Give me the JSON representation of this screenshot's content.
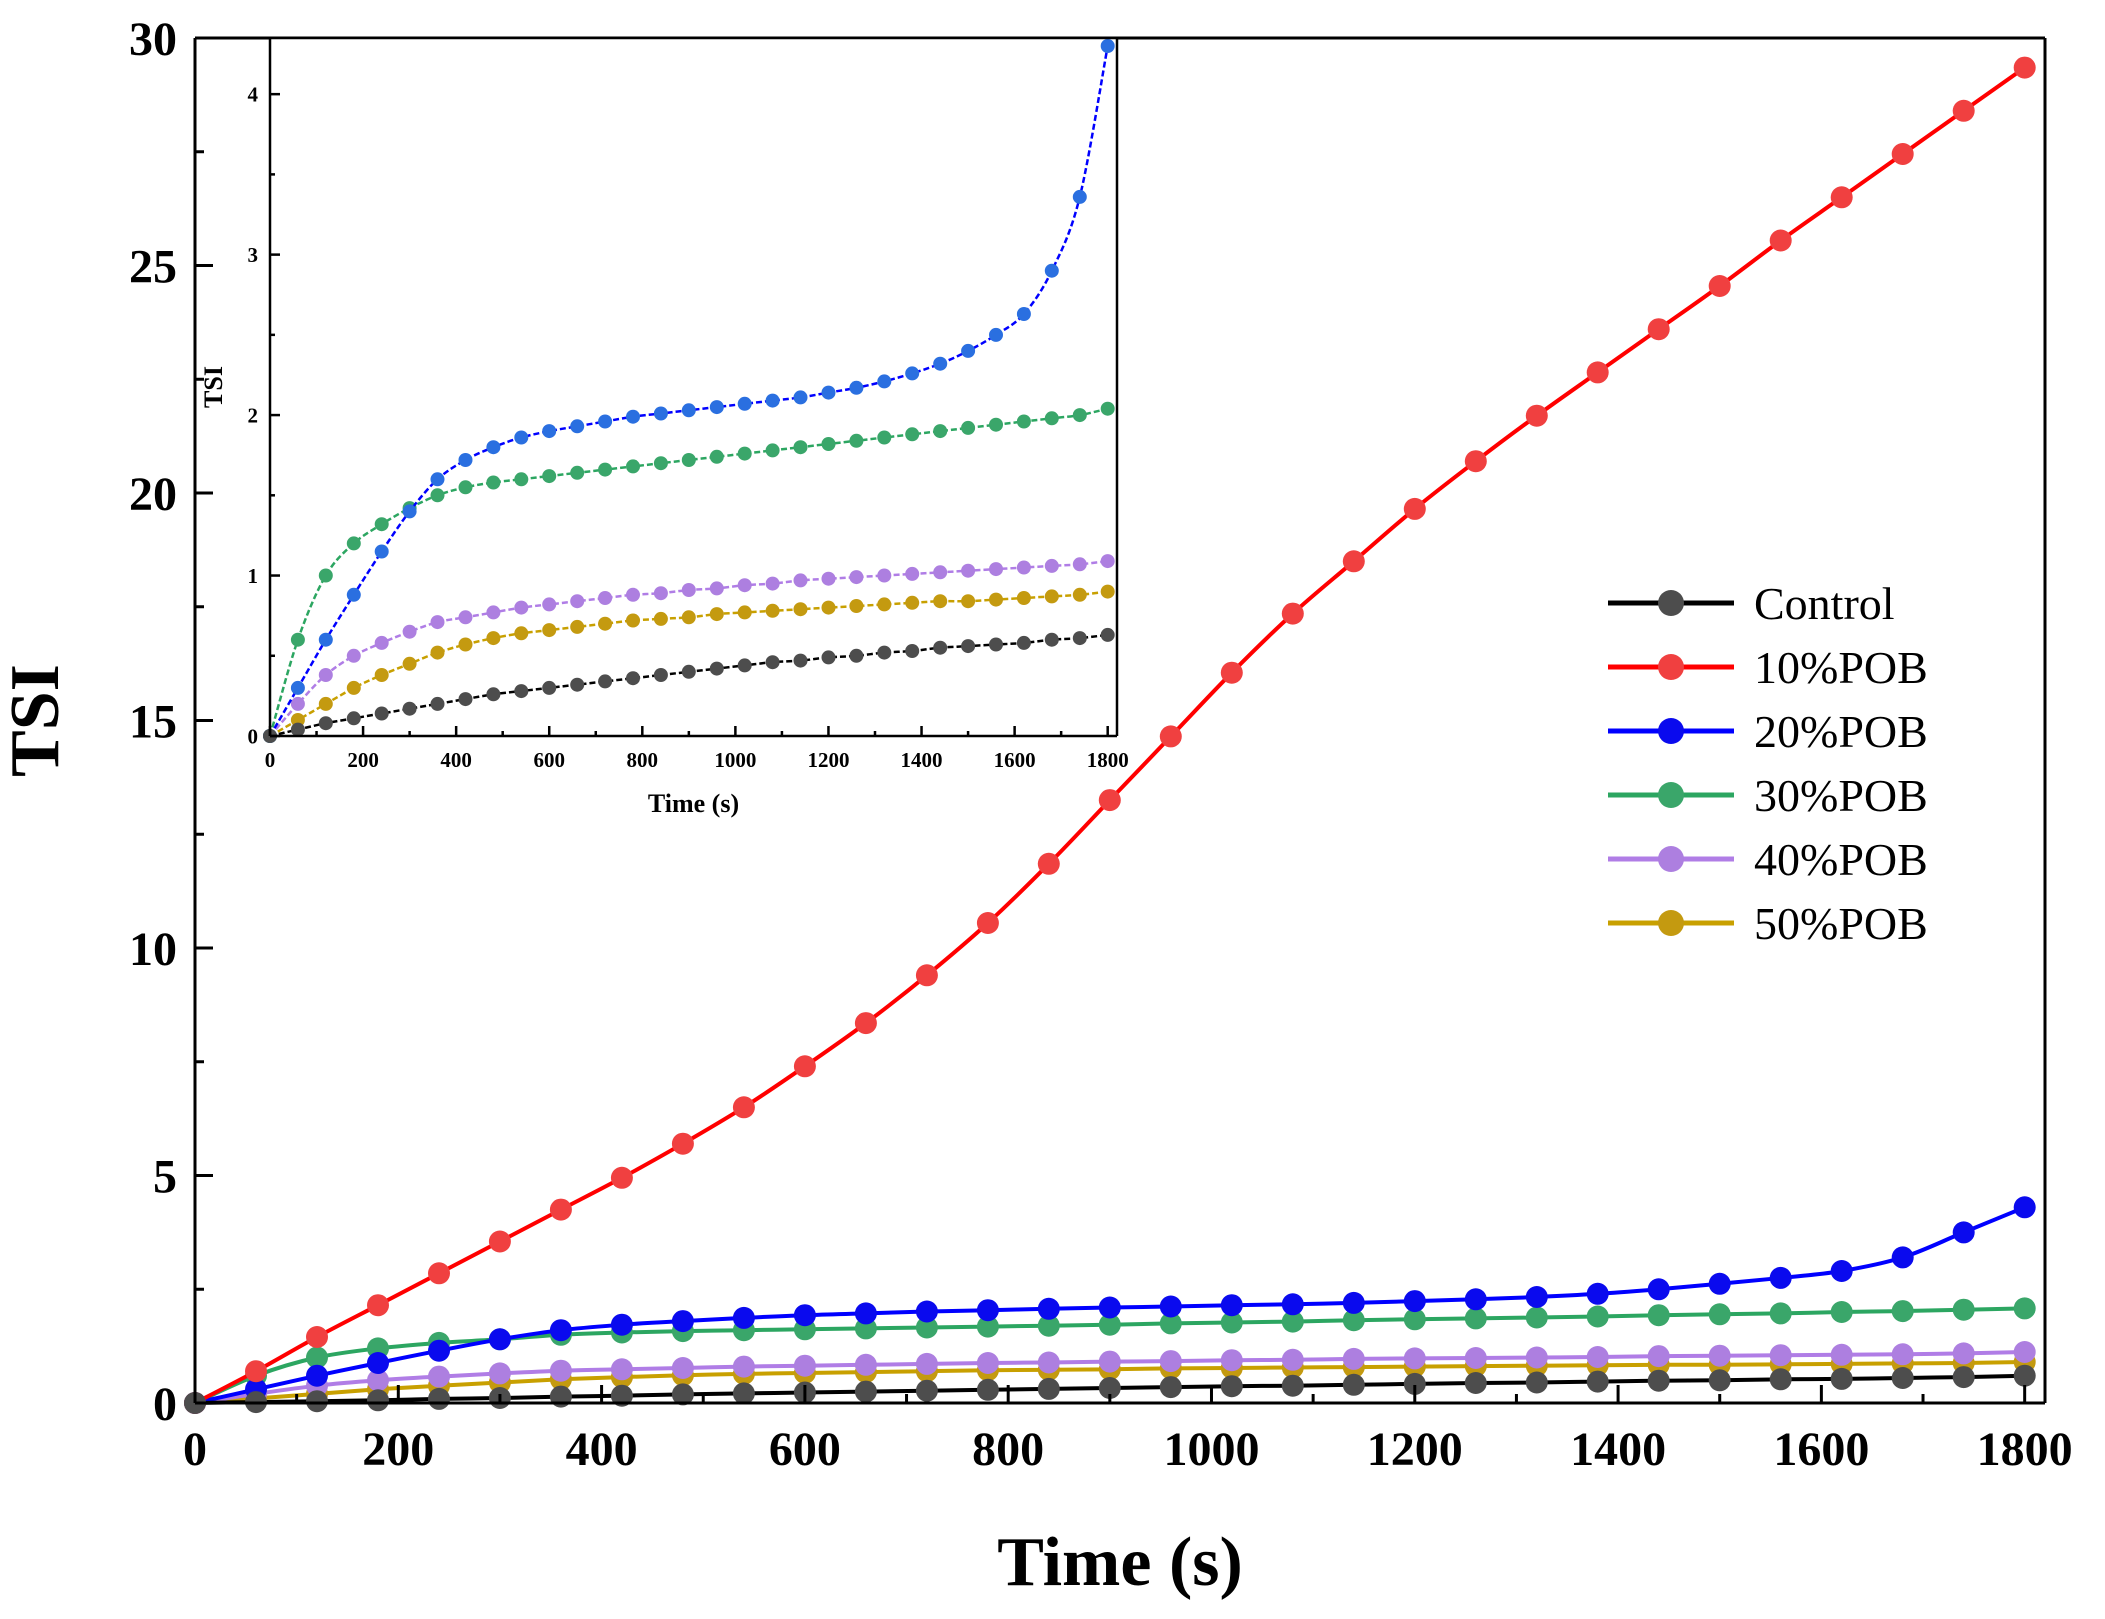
{
  "chart_data": [
    {
      "name": "main",
      "type": "line",
      "xlabel": "Time (s)",
      "ylabel": "TSI",
      "xlim": [
        0,
        1820
      ],
      "ylim": [
        0,
        30
      ],
      "xticks": [
        0,
        200,
        400,
        600,
        800,
        1000,
        1200,
        1400,
        1600,
        1800
      ],
      "yticks": [
        0,
        5,
        10,
        15,
        20,
        25,
        30
      ],
      "x": [
        0,
        60,
        120,
        180,
        240,
        300,
        360,
        420,
        480,
        540,
        600,
        660,
        720,
        780,
        840,
        900,
        960,
        1020,
        1080,
        1140,
        1200,
        1260,
        1320,
        1380,
        1440,
        1500,
        1560,
        1620,
        1680,
        1740,
        1800
      ],
      "legend": {
        "position": "right"
      },
      "series": [
        {
          "name": "Control",
          "color": "#000000",
          "marker_color": "#4d4d4d",
          "values": [
            0,
            0.02,
            0.04,
            0.06,
            0.09,
            0.11,
            0.14,
            0.16,
            0.19,
            0.21,
            0.23,
            0.25,
            0.27,
            0.29,
            0.31,
            0.33,
            0.35,
            0.37,
            0.38,
            0.4,
            0.42,
            0.44,
            0.45,
            0.47,
            0.49,
            0.5,
            0.52,
            0.53,
            0.55,
            0.57,
            0.6
          ]
        },
        {
          "name": "10%POB",
          "color": "#ff0000",
          "marker_color": "#f04040",
          "values": [
            0,
            0.7,
            1.45,
            2.15,
            2.85,
            3.55,
            4.25,
            4.95,
            5.7,
            6.5,
            7.4,
            8.35,
            9.4,
            10.55,
            11.85,
            13.25,
            14.65,
            16.05,
            17.35,
            18.5,
            19.65,
            20.7,
            21.7,
            22.65,
            23.6,
            24.55,
            25.55,
            26.5,
            27.45,
            28.4,
            29.35
          ]
        },
        {
          "name": "20%POB",
          "color": "#0000ff",
          "marker_color": "#0a0aee",
          "values": [
            0,
            0.3,
            0.6,
            0.88,
            1.15,
            1.4,
            1.6,
            1.72,
            1.8,
            1.87,
            1.93,
            1.97,
            2.01,
            2.04,
            2.07,
            2.1,
            2.12,
            2.15,
            2.17,
            2.2,
            2.24,
            2.28,
            2.33,
            2.4,
            2.5,
            2.62,
            2.75,
            2.9,
            3.2,
            3.75,
            4.3
          ]
        },
        {
          "name": "30%POB",
          "color": "#2ca661",
          "marker_color": "#3aa66a",
          "values": [
            0,
            0.6,
            1.0,
            1.2,
            1.32,
            1.4,
            1.5,
            1.55,
            1.58,
            1.6,
            1.62,
            1.64,
            1.66,
            1.68,
            1.7,
            1.72,
            1.75,
            1.77,
            1.79,
            1.82,
            1.84,
            1.86,
            1.88,
            1.9,
            1.93,
            1.95,
            1.97,
            2.0,
            2.02,
            2.05,
            2.08
          ]
        },
        {
          "name": "40%POB",
          "color": "#b07de6",
          "marker_color": "#ad7fe0",
          "values": [
            0,
            0.2,
            0.38,
            0.5,
            0.58,
            0.65,
            0.71,
            0.74,
            0.77,
            0.8,
            0.82,
            0.84,
            0.86,
            0.88,
            0.89,
            0.91,
            0.92,
            0.94,
            0.95,
            0.97,
            0.98,
            0.99,
            1.0,
            1.01,
            1.03,
            1.04,
            1.05,
            1.06,
            1.07,
            1.09,
            1.12
          ]
        },
        {
          "name": "50%POB",
          "color": "#c8a000",
          "marker_color": "#c49a10",
          "values": [
            0,
            0.1,
            0.2,
            0.3,
            0.38,
            0.45,
            0.52,
            0.57,
            0.61,
            0.64,
            0.66,
            0.68,
            0.7,
            0.72,
            0.73,
            0.74,
            0.76,
            0.77,
            0.78,
            0.79,
            0.8,
            0.81,
            0.82,
            0.83,
            0.84,
            0.84,
            0.85,
            0.86,
            0.87,
            0.88,
            0.9
          ]
        }
      ]
    },
    {
      "name": "inset",
      "type": "line",
      "xlabel": "Time (s)",
      "ylabel": "TSI",
      "xlim": [
        0,
        1820
      ],
      "ylim": [
        0,
        4.35
      ],
      "xticks": [
        0,
        200,
        400,
        600,
        800,
        1000,
        1200,
        1400,
        1600,
        1800
      ],
      "yticks": [
        0,
        1,
        2,
        3,
        4
      ],
      "x": [
        0,
        60,
        120,
        180,
        240,
        300,
        360,
        420,
        480,
        540,
        600,
        660,
        720,
        780,
        840,
        900,
        960,
        1020,
        1080,
        1140,
        1200,
        1260,
        1320,
        1380,
        1440,
        1500,
        1560,
        1620,
        1680,
        1740,
        1800
      ],
      "series": [
        {
          "name": "Control",
          "color": "#000000",
          "marker_color": "#4d4d4d",
          "values": [
            0,
            0.04,
            0.08,
            0.11,
            0.14,
            0.17,
            0.2,
            0.23,
            0.26,
            0.28,
            0.3,
            0.32,
            0.34,
            0.36,
            0.38,
            0.4,
            0.42,
            0.44,
            0.46,
            0.47,
            0.49,
            0.5,
            0.52,
            0.53,
            0.55,
            0.56,
            0.57,
            0.58,
            0.6,
            0.61,
            0.63
          ]
        },
        {
          "name": "20%POB",
          "color": "#0000ff",
          "marker_color": "#2a6fe0",
          "values": [
            0,
            0.3,
            0.6,
            0.88,
            1.15,
            1.4,
            1.6,
            1.72,
            1.8,
            1.86,
            1.9,
            1.93,
            1.96,
            1.99,
            2.01,
            2.03,
            2.05,
            2.07,
            2.09,
            2.11,
            2.14,
            2.17,
            2.21,
            2.26,
            2.32,
            2.4,
            2.5,
            2.63,
            2.9,
            3.36,
            4.3
          ]
        },
        {
          "name": "30%POB",
          "color": "#2ca661",
          "marker_color": "#3aa66a",
          "values": [
            0,
            0.6,
            1.0,
            1.2,
            1.32,
            1.42,
            1.5,
            1.55,
            1.58,
            1.6,
            1.62,
            1.64,
            1.66,
            1.68,
            1.7,
            1.72,
            1.74,
            1.76,
            1.78,
            1.8,
            1.82,
            1.84,
            1.86,
            1.88,
            1.9,
            1.92,
            1.94,
            1.96,
            1.98,
            2.0,
            2.04
          ]
        },
        {
          "name": "40%POB",
          "color": "#b07de6",
          "marker_color": "#ad7fe0",
          "values": [
            0,
            0.2,
            0.38,
            0.5,
            0.58,
            0.65,
            0.71,
            0.74,
            0.77,
            0.8,
            0.82,
            0.84,
            0.86,
            0.88,
            0.89,
            0.91,
            0.92,
            0.94,
            0.95,
            0.97,
            0.98,
            0.99,
            1.0,
            1.01,
            1.02,
            1.03,
            1.04,
            1.05,
            1.06,
            1.07,
            1.09
          ]
        },
        {
          "name": "50%POB",
          "color": "#c8a000",
          "marker_color": "#c49a10",
          "values": [
            0,
            0.1,
            0.2,
            0.3,
            0.38,
            0.45,
            0.52,
            0.57,
            0.61,
            0.64,
            0.66,
            0.68,
            0.7,
            0.72,
            0.73,
            0.74,
            0.76,
            0.77,
            0.78,
            0.79,
            0.8,
            0.81,
            0.82,
            0.83,
            0.84,
            0.84,
            0.85,
            0.86,
            0.87,
            0.88,
            0.9
          ]
        }
      ]
    }
  ]
}
